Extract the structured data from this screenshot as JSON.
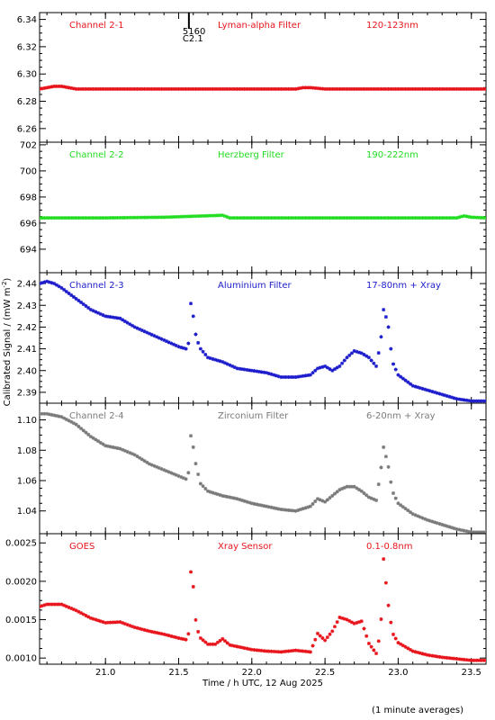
{
  "shared": {
    "xlabel": "Time / h UTC, 12 Aug 2025",
    "ylabel_main": "Calibrated Signal / (mW m",
    "ylabel_sup": "-2",
    "ylabel_close": ")",
    "footnote": "(1 minute averages)",
    "xlim": [
      20.55,
      23.6
    ],
    "xticks": [
      "21.0",
      "21.5",
      "22.0",
      "22.5",
      "23.0",
      "23.5"
    ],
    "flare_marker": {
      "x": 21.57,
      "label1": "5160",
      "label2": "C2.1"
    }
  },
  "chart_data": [
    {
      "type": "scatter",
      "name": "Channel 2-1",
      "filter": "Lyman-alpha Filter",
      "band": "120-123nm",
      "color": "#e8141c",
      "ylim": [
        6.25,
        6.345
      ],
      "yticks": [
        "6.26",
        "6.28",
        "6.30",
        "6.32",
        "6.34"
      ],
      "series": [
        {
          "x": [
            20.55,
            20.6,
            20.65,
            20.7,
            20.75,
            20.8,
            21.0,
            21.5,
            22.0,
            22.3,
            22.35,
            22.4,
            22.5,
            23.0,
            23.5,
            23.6
          ],
          "y": [
            6.289,
            6.29,
            6.291,
            6.291,
            6.29,
            6.289,
            6.289,
            6.289,
            6.289,
            6.289,
            6.29,
            6.29,
            6.289,
            6.289,
            6.289,
            6.289
          ]
        }
      ]
    },
    {
      "type": "scatter",
      "name": "Channel 2-2",
      "filter": "Herzberg Filter",
      "band": "190-222nm",
      "color": "#22dd22",
      "ylim": [
        692.2,
        702.2
      ],
      "yticks": [
        "694",
        "696",
        "698",
        "700",
        "702"
      ],
      "series": [
        {
          "x": [
            20.55,
            21.0,
            21.4,
            21.8,
            21.85,
            22.0,
            22.5,
            23.0,
            23.4,
            23.45,
            23.5,
            23.6
          ],
          "y": [
            696.4,
            696.4,
            696.45,
            696.6,
            696.4,
            696.4,
            696.4,
            696.4,
            696.4,
            696.55,
            696.45,
            696.4
          ]
        }
      ]
    },
    {
      "type": "scatter",
      "name": "Channel 2-3",
      "filter": "Aluminium Filter",
      "band": "17-80nm + Xray",
      "color": "#1c1ccc",
      "ylim": [
        2.385,
        2.445
      ],
      "yticks": [
        "2.39",
        "2.40",
        "2.41",
        "2.42",
        "2.43",
        "2.44"
      ],
      "series": [
        {
          "x": [
            20.55,
            20.6,
            20.65,
            20.7,
            20.8,
            20.9,
            21.0,
            21.1,
            21.2,
            21.3,
            21.4,
            21.5,
            21.55,
            21.57,
            21.58,
            21.6,
            21.62,
            21.65,
            21.7,
            21.8,
            21.9,
            22.0,
            22.1,
            22.2,
            22.3,
            22.4,
            22.45,
            22.5,
            22.55,
            22.6,
            22.65,
            22.7,
            22.75,
            22.8,
            22.85,
            22.88,
            22.9,
            22.93,
            22.96,
            23.0,
            23.1,
            23.2,
            23.3,
            23.4,
            23.5,
            23.6
          ],
          "y": [
            2.44,
            2.441,
            2.44,
            2.438,
            2.433,
            2.428,
            2.425,
            2.424,
            2.42,
            2.417,
            2.414,
            2.411,
            2.41,
            2.413,
            2.432,
            2.425,
            2.415,
            2.41,
            2.406,
            2.404,
            2.401,
            2.4,
            2.399,
            2.397,
            2.397,
            2.398,
            2.401,
            2.402,
            2.4,
            2.402,
            2.406,
            2.409,
            2.408,
            2.406,
            2.402,
            2.413,
            2.428,
            2.422,
            2.404,
            2.398,
            2.393,
            2.391,
            2.389,
            2.387,
            2.386,
            2.386
          ]
        }
      ]
    },
    {
      "type": "scatter",
      "name": "Channel 2-4",
      "filter": "Zirconium Filter",
      "band": "6-20nm + Xray",
      "color": "#7a7a7a",
      "ylim": [
        1.025,
        1.111
      ],
      "yticks": [
        "1.04",
        "1.06",
        "1.08",
        "1.10"
      ],
      "series": [
        {
          "x": [
            20.55,
            20.6,
            20.7,
            20.8,
            20.9,
            21.0,
            21.1,
            21.2,
            21.3,
            21.4,
            21.5,
            21.55,
            21.57,
            21.58,
            21.6,
            21.62,
            21.65,
            21.7,
            21.8,
            21.9,
            22.0,
            22.1,
            22.2,
            22.3,
            22.4,
            22.45,
            22.5,
            22.55,
            22.6,
            22.65,
            22.7,
            22.75,
            22.8,
            22.85,
            22.88,
            22.9,
            22.93,
            22.96,
            23.0,
            23.1,
            23.2,
            23.3,
            23.4,
            23.5,
            23.6
          ],
          "y": [
            1.104,
            1.104,
            1.102,
            1.097,
            1.089,
            1.083,
            1.081,
            1.077,
            1.071,
            1.067,
            1.063,
            1.061,
            1.066,
            1.091,
            1.082,
            1.069,
            1.058,
            1.053,
            1.05,
            1.048,
            1.045,
            1.043,
            1.041,
            1.04,
            1.043,
            1.048,
            1.046,
            1.05,
            1.054,
            1.056,
            1.056,
            1.053,
            1.049,
            1.047,
            1.066,
            1.082,
            1.071,
            1.053,
            1.045,
            1.038,
            1.034,
            1.031,
            1.028,
            1.026,
            1.026
          ]
        }
      ]
    },
    {
      "type": "scatter",
      "name": "GOES",
      "filter": "Xray Sensor",
      "band": "0.1-0.8nm",
      "color": "#e8141c",
      "ylim": [
        0.00092,
        0.00262
      ],
      "yticks": [
        "0.0010",
        "0.0015",
        "0.0020",
        "0.0025"
      ],
      "series": [
        {
          "x": [
            20.55,
            20.6,
            20.7,
            20.8,
            20.9,
            21.0,
            21.1,
            21.2,
            21.3,
            21.4,
            21.5,
            21.55,
            21.57,
            21.58,
            21.6,
            21.62,
            21.65,
            21.7,
            21.75,
            21.8,
            21.85,
            21.9,
            22.0,
            22.1,
            22.2,
            22.3,
            22.4,
            22.45,
            22.5,
            22.55,
            22.6,
            22.65,
            22.7,
            22.75,
            22.8,
            22.85,
            22.88,
            22.9,
            22.93,
            22.96,
            23.0,
            23.1,
            23.2,
            23.3,
            23.4,
            23.5,
            23.6
          ],
          "y": [
            0.00167,
            0.0017,
            0.0017,
            0.00162,
            0.00152,
            0.00146,
            0.00147,
            0.0014,
            0.00135,
            0.00131,
            0.00126,
            0.00124,
            0.00133,
            0.00216,
            0.00193,
            0.00141,
            0.00126,
            0.00118,
            0.00118,
            0.00125,
            0.00117,
            0.00115,
            0.00111,
            0.00109,
            0.00108,
            0.0011,
            0.00108,
            0.00132,
            0.00123,
            0.00135,
            0.00153,
            0.0015,
            0.00145,
            0.00148,
            0.00119,
            0.00106,
            0.00135,
            0.00229,
            0.00173,
            0.00133,
            0.0012,
            0.00109,
            0.00104,
            0.00101,
            0.00099,
            0.00097,
            0.00097
          ]
        }
      ]
    }
  ]
}
